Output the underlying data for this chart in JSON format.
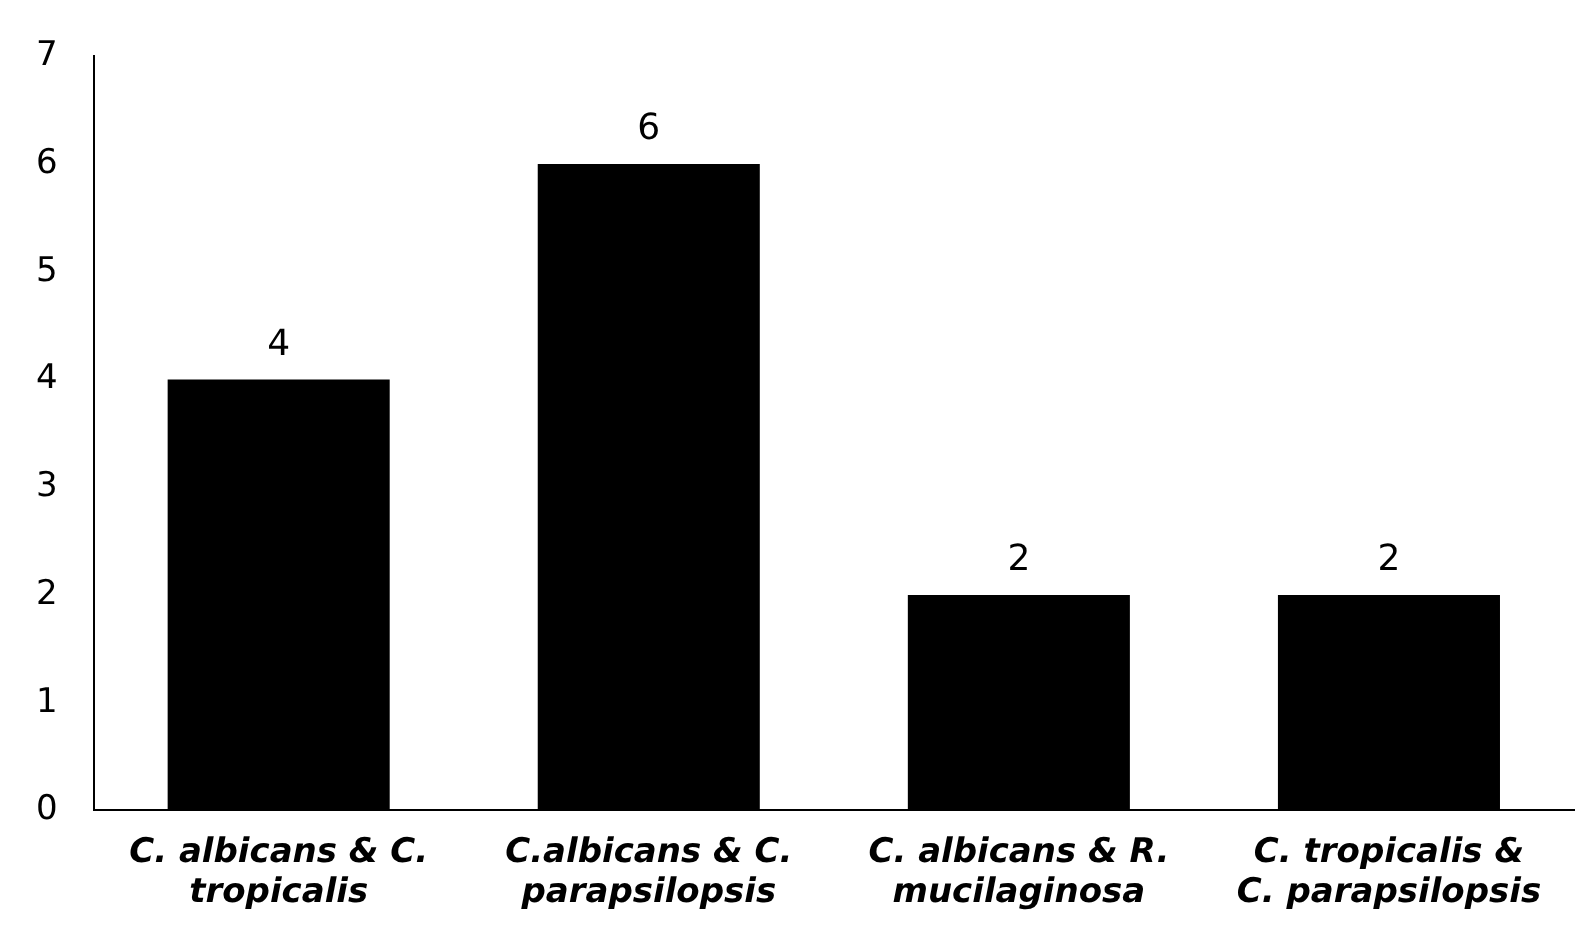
{
  "chart_data": {
    "type": "bar",
    "categories": [
      "C. albicans & C. tropicalis",
      "C.albicans & C. parapsilopsis",
      "C. albicans & R. mucilaginosa",
      "C. tropicalis & C. parapsilopsis"
    ],
    "values": [
      4,
      6,
      2,
      2
    ],
    "color": "#000000",
    "ylim": [
      0,
      7
    ],
    "yticks": [
      0,
      1,
      2,
      3,
      4,
      5,
      6,
      7
    ],
    "grid": false,
    "data_labels": true
  }
}
